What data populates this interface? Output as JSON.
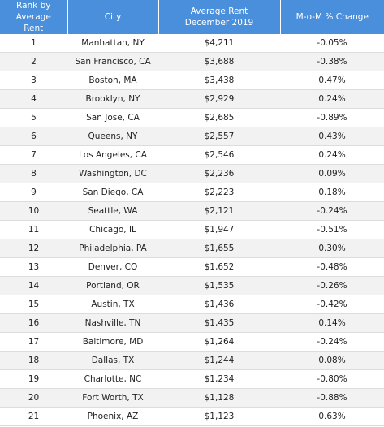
{
  "table": {
    "header": [
      "Rank by Average Rent",
      "City",
      "Average Rent December 2019",
      "M-o-M % Change"
    ],
    "rows": [
      [
        "1",
        "Manhattan, NY",
        "$4,211",
        "-0.05%"
      ],
      [
        "2",
        "San Francisco, CA",
        "$3,688",
        "-0.38%"
      ],
      [
        "3",
        "Boston, MA",
        "$3,438",
        "0.47%"
      ],
      [
        "4",
        "Brooklyn, NY",
        "$2,929",
        "0.24%"
      ],
      [
        "5",
        "San Jose, CA",
        "$2,685",
        "-0.89%"
      ],
      [
        "6",
        "Queens, NY",
        "$2,557",
        "0.43%"
      ],
      [
        "7",
        "Los Angeles, CA",
        "$2,546",
        "0.24%"
      ],
      [
        "8",
        "Washington, DC",
        "$2,236",
        "0.09%"
      ],
      [
        "9",
        "San Diego, CA",
        "$2,223",
        "0.18%"
      ],
      [
        "10",
        "Seattle, WA",
        "$2,121",
        "-0.24%"
      ],
      [
        "11",
        "Chicago, IL",
        "$1,947",
        "-0.51%"
      ],
      [
        "12",
        "Philadelphia, PA",
        "$1,655",
        "0.30%"
      ],
      [
        "13",
        "Denver, CO",
        "$1,652",
        "-0.48%"
      ],
      [
        "14",
        "Portland, OR",
        "$1,535",
        "-0.26%"
      ],
      [
        "15",
        "Austin, TX",
        "$1,436",
        "-0.42%"
      ],
      [
        "16",
        "Nashville, TN",
        "$1,435",
        "0.14%"
      ],
      [
        "17",
        "Baltimore, MD",
        "$1,264",
        "-0.24%"
      ],
      [
        "18",
        "Dallas, TX",
        "$1,244",
        "0.08%"
      ],
      [
        "19",
        "Charlotte, NC",
        "$1,234",
        "-0.80%"
      ],
      [
        "20",
        "Fort Worth, TX",
        "$1,128",
        "-0.88%"
      ],
      [
        "21",
        "Phoenix, AZ",
        "$1,123",
        "0.63%"
      ]
    ]
  }
}
